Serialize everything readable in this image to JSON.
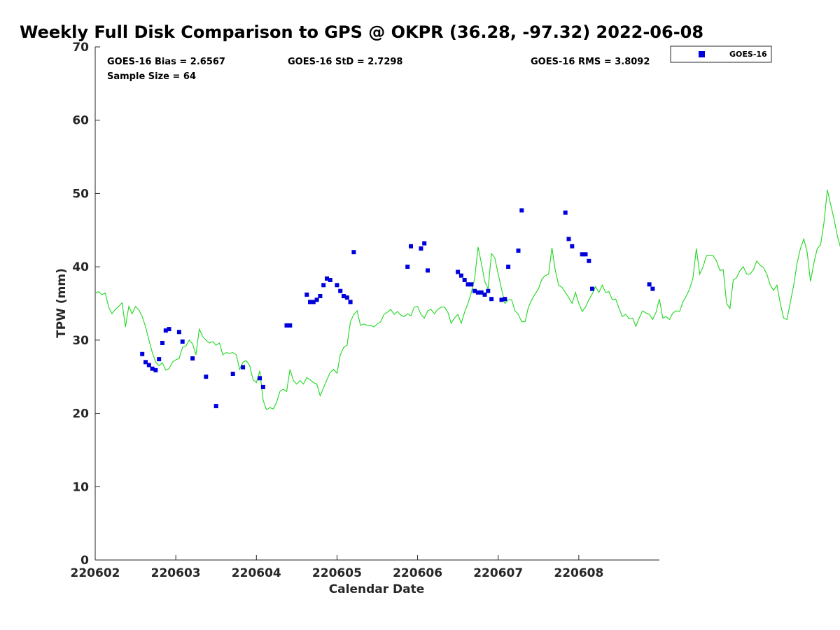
{
  "chart_data": {
    "type": "scatter",
    "title": "Weekly Full Disk Comparison to GPS @ OKPR (36.28, -97.32) 2022-06-08",
    "xlabel": "Calendar Date",
    "ylabel": "TPW (mm)",
    "xlim": [
      "2022-06-02",
      "2022-06-09"
    ],
    "ylim": [
      0,
      70
    ],
    "x_ticks": [
      "220602",
      "220603",
      "220604",
      "220605",
      "220606",
      "220607",
      "220608"
    ],
    "y_ticks": [
      "0",
      "10",
      "20",
      "30",
      "40",
      "50",
      "60",
      "70"
    ],
    "grid": false,
    "legend_position": "top-right outside",
    "stats": {
      "bias": "GOES-16 Bias = 2.6567",
      "std": "GOES-16 StD = 2.7298",
      "rms": "GOES-16 RMS = 3.8092",
      "sample": "Sample Size = 64"
    },
    "series": [
      {
        "name": "GOES-16",
        "kind": "scatter",
        "color": "#0000dd",
        "x": [
          "2022-06-02T14:00",
          "2022-06-02T15:00",
          "2022-06-02T16:00",
          "2022-06-02T17:00",
          "2022-06-02T18:00",
          "2022-06-02T19:00",
          "2022-06-02T20:00",
          "2022-06-02T21:00",
          "2022-06-02T22:00",
          "2022-06-03T01:00",
          "2022-06-03T02:00",
          "2022-06-03T05:00",
          "2022-06-03T09:00",
          "2022-06-03T12:00",
          "2022-06-03T17:00",
          "2022-06-03T20:00",
          "2022-06-04T01:00",
          "2022-06-04T02:00",
          "2022-06-04T09:00",
          "2022-06-04T10:00",
          "2022-06-04T15:00",
          "2022-06-04T16:00",
          "2022-06-04T17:00",
          "2022-06-04T18:00",
          "2022-06-04T19:00",
          "2022-06-04T20:00",
          "2022-06-04T21:00",
          "2022-06-04T22:00",
          "2022-06-05T00:00",
          "2022-06-05T01:00",
          "2022-06-05T02:00",
          "2022-06-05T03:00",
          "2022-06-05T04:00",
          "2022-06-05T05:00",
          "2022-06-05T21:00",
          "2022-06-05T22:00",
          "2022-06-06T01:00",
          "2022-06-06T02:00",
          "2022-06-06T03:00",
          "2022-06-06T12:00",
          "2022-06-06T13:00",
          "2022-06-06T14:00",
          "2022-06-06T15:00",
          "2022-06-06T16:00",
          "2022-06-06T17:00",
          "2022-06-06T18:00",
          "2022-06-06T19:00",
          "2022-06-06T20:00",
          "2022-06-06T21:00",
          "2022-06-06T22:00",
          "2022-06-07T01:00",
          "2022-06-07T02:00",
          "2022-06-07T03:00",
          "2022-06-07T06:00",
          "2022-06-07T07:00",
          "2022-06-07T20:00",
          "2022-06-07T21:00",
          "2022-06-07T22:00",
          "2022-06-08T01:00",
          "2022-06-08T02:00",
          "2022-06-08T03:00",
          "2022-06-08T04:00",
          "2022-06-08T21:00",
          "2022-06-08T22:00"
        ],
        "y": [
          28.1,
          27.0,
          26.6,
          26.1,
          25.9,
          27.4,
          29.6,
          31.3,
          31.5,
          31.1,
          29.8,
          27.5,
          25.0,
          21.0,
          25.4,
          26.3,
          24.8,
          23.6,
          32.0,
          32.0,
          36.2,
          35.2,
          35.2,
          35.5,
          36.0,
          37.5,
          38.4,
          38.2,
          37.5,
          36.7,
          36.0,
          35.8,
          35.2,
          42.0,
          40.0,
          42.8,
          42.5,
          43.2,
          39.5,
          39.3,
          38.8,
          38.2,
          37.6,
          37.6,
          36.7,
          36.5,
          36.5,
          36.2,
          36.7,
          35.6,
          35.5,
          35.6,
          40.0,
          42.2,
          47.7,
          47.4,
          43.8,
          42.8,
          41.7,
          41.7,
          40.8,
          37.0,
          37.6,
          37.0
        ]
      },
      {
        "name": "GPS",
        "kind": "line",
        "color": "#1ed81e",
        "start": "2022-06-02",
        "step_hours": 1,
        "y": [
          36.4,
          36.6,
          36.2,
          36.4,
          34.5,
          33.6,
          34.2,
          34.6,
          35.1,
          31.8,
          34.6,
          33.6,
          34.6,
          34.1,
          33.2,
          31.8,
          30.0,
          28.3,
          27.0,
          26.5,
          26.9,
          25.9,
          26.1,
          27.0,
          27.3,
          27.5,
          29.0,
          29.2,
          30.0,
          29.5,
          28.0,
          31.5,
          30.5,
          30.0,
          29.6,
          29.8,
          29.3,
          29.6,
          28.0,
          28.3,
          28.2,
          28.3,
          28.0,
          26.0,
          27.0,
          27.2,
          26.5,
          24.6,
          24.2,
          25.8,
          21.8,
          20.5,
          20.8,
          20.6,
          21.5,
          23.0,
          23.3,
          23.0,
          26.0,
          24.5,
          24.0,
          24.5,
          24.0,
          24.9,
          24.6,
          24.2,
          24.0,
          22.4,
          23.5,
          24.6,
          25.6,
          26.0,
          25.5,
          28.0,
          29.0,
          29.3,
          32.5,
          33.5,
          34.0,
          32.0,
          32.2,
          32.0,
          32.0,
          31.8,
          32.2,
          32.5,
          33.5,
          33.8,
          34.2,
          33.5,
          33.9,
          33.4,
          33.2,
          33.6,
          33.3,
          34.5,
          34.6,
          33.5,
          33.0,
          34.0,
          34.2,
          33.6,
          34.2,
          34.5,
          34.5,
          33.8,
          32.3,
          33.0,
          33.5,
          32.3,
          33.8,
          35.0,
          36.5,
          38.4,
          42.7,
          40.5,
          38.0,
          37.0,
          41.8,
          41.2,
          39.0,
          37.0,
          35.0,
          35.5,
          35.5,
          34.0,
          33.5,
          32.5,
          32.5,
          34.5,
          35.5,
          36.3,
          37.0,
          38.3,
          38.8,
          39.0,
          42.6,
          39.5,
          37.5,
          37.2,
          36.5,
          35.8,
          35.0,
          36.5,
          35.0,
          33.9,
          34.5,
          35.5,
          36.3,
          37.3,
          36.5,
          37.5,
          36.5,
          36.6,
          35.5,
          35.6,
          34.3,
          33.2,
          33.5,
          32.9,
          33.0,
          31.9,
          33.0,
          34.0,
          33.7,
          33.5,
          32.8,
          33.8,
          35.6,
          33.0,
          33.2,
          32.8,
          33.7,
          34.0,
          33.9,
          35.2,
          36.0,
          37.0,
          38.5,
          42.5,
          39.0,
          40.0,
          41.5,
          41.6,
          41.5,
          40.8,
          39.5,
          39.6,
          35.0,
          34.3,
          38.2,
          38.5,
          39.5,
          40.0,
          39.0,
          39.0,
          39.6,
          40.8,
          40.2,
          39.9,
          39.0,
          37.5,
          36.8,
          37.5,
          35.0,
          33.0,
          32.8,
          35.2,
          37.5,
          40.5,
          42.5,
          43.8,
          42.0,
          38.0,
          40.5,
          42.5,
          43.0,
          46.0,
          50.5,
          48.5,
          46.5,
          44.2,
          42.5,
          42.0,
          42.5,
          40.5,
          41.8,
          43.0,
          41.5,
          40.5,
          36.5,
          35.5,
          35.5,
          35.0,
          34.5,
          33.5,
          33.5,
          32.0,
          32.1,
          32.3,
          32.0
        ]
      }
    ]
  }
}
